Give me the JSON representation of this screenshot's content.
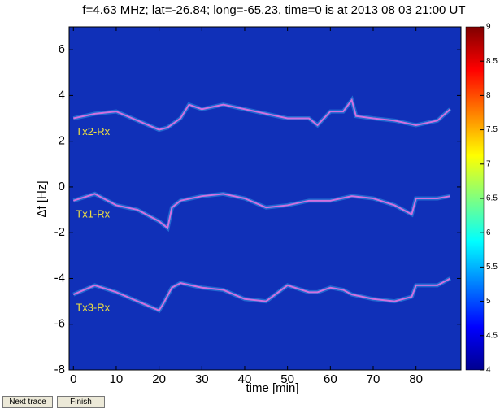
{
  "chart_data": {
    "type": "line",
    "title": "f=4.63 MHz;  lat=-26.84; long=-65.23, time=0 is at 2013 08 03 21:00 UT",
    "xlabel": "time [min]",
    "ylabel": "Δf [Hz]",
    "xlim": [
      -1,
      90.5
    ],
    "ylim": [
      -8,
      7
    ],
    "xticks": [
      0,
      10,
      20,
      30,
      40,
      50,
      60,
      70,
      80
    ],
    "yticks": [
      -8,
      -6,
      -4,
      -2,
      0,
      2,
      4,
      6
    ],
    "background": "#1030b8",
    "colorbar": {
      "clim": [
        4,
        9
      ],
      "ticks": [
        4,
        4.5,
        5,
        5.5,
        6,
        6.5,
        7,
        7.5,
        8,
        8.5,
        9
      ]
    },
    "series": [
      {
        "name": "Tx2-Rx",
        "color": "#d070e0",
        "x": [
          0,
          5,
          10,
          15,
          20,
          22,
          25,
          27,
          30,
          35,
          40,
          45,
          50,
          55,
          57,
          60,
          63,
          65,
          66,
          70,
          75,
          80,
          85,
          88
        ],
        "values": [
          3.0,
          3.2,
          3.3,
          2.9,
          2.5,
          2.6,
          3.0,
          3.6,
          3.4,
          3.6,
          3.4,
          3.2,
          3.0,
          3.0,
          2.7,
          3.3,
          3.3,
          3.8,
          3.1,
          3.0,
          2.9,
          2.7,
          2.9,
          3.4
        ]
      },
      {
        "name": "Tx1-Rx",
        "color": "#d070e0",
        "x": [
          0,
          5,
          10,
          15,
          20,
          22,
          23,
          25,
          30,
          35,
          40,
          45,
          50,
          55,
          60,
          65,
          70,
          75,
          79,
          80,
          85,
          88
        ],
        "values": [
          -0.6,
          -0.3,
          -0.8,
          -1.0,
          -1.5,
          -1.8,
          -0.9,
          -0.6,
          -0.4,
          -0.3,
          -0.5,
          -0.9,
          -0.8,
          -0.6,
          -0.6,
          -0.4,
          -0.5,
          -0.8,
          -1.2,
          -0.5,
          -0.5,
          -0.4
        ]
      },
      {
        "name": "Tx3-Rx",
        "color": "#d070e0",
        "x": [
          0,
          5,
          10,
          15,
          20,
          21,
          23,
          25,
          30,
          35,
          40,
          45,
          50,
          55,
          57,
          60,
          63,
          65,
          70,
          75,
          79,
          80,
          85,
          88
        ],
        "values": [
          -4.7,
          -4.3,
          -4.6,
          -5.0,
          -5.4,
          -5.1,
          -4.4,
          -4.2,
          -4.4,
          -4.5,
          -4.9,
          -5.0,
          -4.3,
          -4.6,
          -4.6,
          -4.4,
          -4.5,
          -4.7,
          -4.9,
          -5.0,
          -4.8,
          -4.3,
          -4.3,
          -4.0
        ]
      }
    ]
  },
  "buttons": [
    "Next trace",
    "Finish"
  ]
}
